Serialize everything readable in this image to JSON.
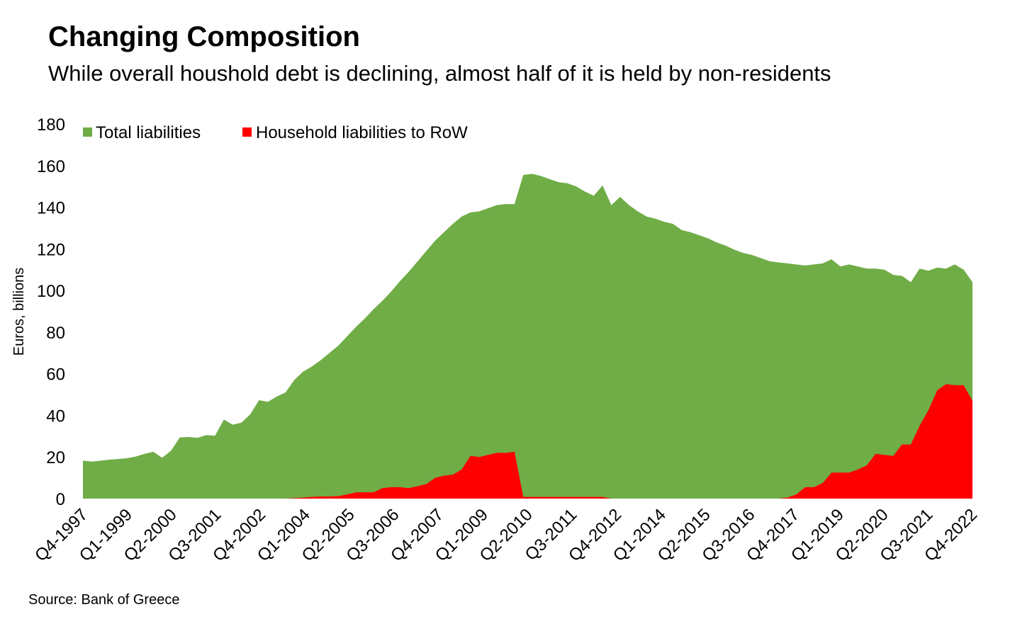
{
  "title": "Changing Composition",
  "subtitle": "While overall houshold debt is declining, almost half of it is held by non-residents",
  "source": "Source: Bank of Greece",
  "chart_data": {
    "type": "area",
    "ylabel": "Euros, billions",
    "ylim": [
      0,
      180
    ],
    "yticks": [
      0,
      20,
      40,
      60,
      80,
      100,
      120,
      140,
      160,
      180
    ],
    "grid": false,
    "legend_position": "top-left",
    "x_start": "Q4-1997",
    "x_end": "Q4-2022",
    "xtick_labels": [
      "Q4-1997",
      "Q1-1999",
      "Q2-2000",
      "Q3-2001",
      "Q4-2002",
      "Q1-2004",
      "Q2-2005",
      "Q3-2006",
      "Q4-2007",
      "Q1-2009",
      "Q2-2010",
      "Q3-2011",
      "Q4-2012",
      "Q1-2014",
      "Q2-2015",
      "Q3-2016",
      "Q4-2017",
      "Q1-2019",
      "Q2-2020",
      "Q3-2021",
      "Q4-2022"
    ],
    "series": [
      {
        "name": "Total liabilities",
        "color": "#70ad47",
        "values": [
          18.2,
          17.8,
          18.2,
          18.7,
          19.0,
          19.4,
          20.2,
          21.5,
          22.5,
          19.6,
          23.0,
          29.4,
          29.6,
          29.2,
          30.5,
          30.2,
          38.0,
          35.5,
          36.5,
          40.5,
          47.3,
          46.5,
          49.0,
          51.0,
          57.0,
          61.0,
          63.5,
          66.5,
          70.0,
          73.5,
          78.0,
          82.5,
          86.5,
          91.0,
          95.0,
          99.5,
          104.5,
          109.0,
          114.0,
          119.0,
          124.0,
          128.0,
          132.0,
          135.5,
          137.5,
          138.0,
          139.5,
          141.0,
          141.5,
          141.5,
          155.5,
          156.0,
          155.0,
          153.5,
          152.0,
          151.5,
          150.0,
          147.5,
          145.5,
          150.5,
          141.0,
          145.0,
          141.0,
          138.0,
          135.5,
          134.5,
          133.0,
          132.0,
          129.0,
          128.0,
          126.5,
          125.0,
          123.0,
          121.5,
          119.5,
          118.0,
          117.0,
          115.5,
          114.0,
          113.5,
          113.0,
          112.5,
          112.0,
          112.5,
          113.0,
          115.0,
          111.5,
          112.5,
          111.5,
          110.5,
          110.5,
          110.0,
          107.5,
          107.0,
          104.0,
          110.5,
          109.5,
          111.0,
          110.5,
          112.5,
          110.0,
          104.0
        ]
      },
      {
        "name": "Household liabilities to RoW",
        "color": "#ff0000",
        "values": [
          0.0,
          0.0,
          0.0,
          0.0,
          0.0,
          0.0,
          0.0,
          0.0,
          0.0,
          0.0,
          0.0,
          0.0,
          0.0,
          0.0,
          0.0,
          0.0,
          0.0,
          0.0,
          0.0,
          0.0,
          0.0,
          0.0,
          0.0,
          0.0,
          0.2,
          0.5,
          0.8,
          1.0,
          1.0,
          1.2,
          2.0,
          3.0,
          3.0,
          3.0,
          5.0,
          5.5,
          5.5,
          5.0,
          6.0,
          7.0,
          10.0,
          11.0,
          11.5,
          14.0,
          20.5,
          20.0,
          21.0,
          22.0,
          22.0,
          22.5,
          0.8,
          0.8,
          0.8,
          0.8,
          0.8,
          0.8,
          0.8,
          0.8,
          0.8,
          0.8,
          0.0,
          0.0,
          0.0,
          0.0,
          0.0,
          0.0,
          0.0,
          0.0,
          0.0,
          0.0,
          0.0,
          0.0,
          0.0,
          0.0,
          0.0,
          0.0,
          0.0,
          0.0,
          0.0,
          0.0,
          0.5,
          2.0,
          5.5,
          5.5,
          7.5,
          12.5,
          12.5,
          12.5,
          14.0,
          16.0,
          21.5,
          21.0,
          20.5,
          26.0,
          26.0,
          35.0,
          42.5,
          52.0,
          55.0,
          54.5,
          54.5,
          47.0
        ]
      }
    ]
  }
}
